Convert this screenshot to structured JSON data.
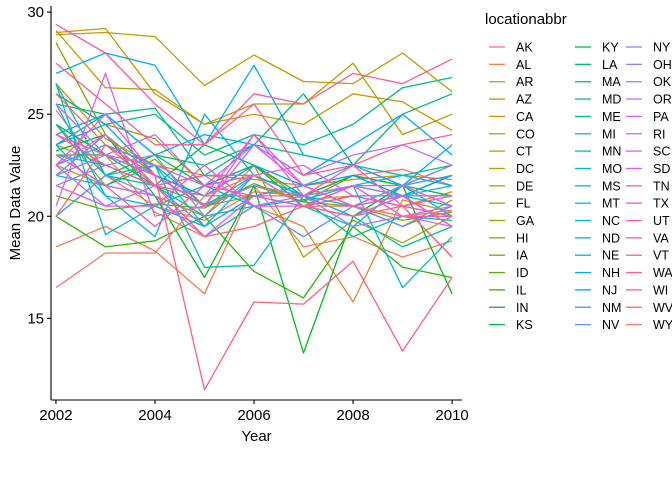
{
  "chart_data": {
    "type": "line",
    "xlabel": "Year",
    "ylabel": "Mean Data Value",
    "xlim": [
      2001.9,
      2010.2
    ],
    "ylim": [
      11.0,
      30.3
    ],
    "x_ticks": [
      2002,
      2004,
      2006,
      2008,
      2010
    ],
    "y_ticks": [
      15,
      20,
      25,
      30
    ],
    "grid": false,
    "legend": {
      "title": "locationabbr",
      "position": "right",
      "columns": 3
    },
    "x": [
      2002,
      2003,
      2004,
      2005,
      2006,
      2007,
      2008,
      2009,
      2010
    ],
    "series": [
      {
        "name": "AK",
        "color": "#F8766D",
        "values": [
          25.2,
          22.0,
          20.5,
          19.8,
          21.2,
          21.0,
          22.0,
          22.3,
          21.5
        ]
      },
      {
        "name": "AL",
        "color": "#F27D53",
        "values": [
          18.5,
          19.5,
          18.3,
          16.2,
          21.5,
          18.5,
          19.0,
          18.0,
          18.8
        ]
      },
      {
        "name": "AR",
        "color": "#EA8331",
        "values": [
          24.5,
          23.0,
          20.2,
          19.0,
          20.5,
          19.5,
          15.8,
          20.8,
          20.2
        ]
      },
      {
        "name": "AZ",
        "color": "#E18A00",
        "values": [
          26.5,
          23.8,
          22.5,
          22.0,
          21.8,
          21.5,
          21.8,
          22.0,
          21.8
        ]
      },
      {
        "name": "CA",
        "color": "#D89000",
        "values": [
          22.5,
          21.5,
          21.0,
          20.0,
          22.5,
          20.8,
          21.0,
          20.5,
          21.2
        ]
      },
      {
        "name": "CO",
        "color": "#CD9600",
        "values": [
          29.0,
          29.2,
          26.0,
          24.5,
          25.0,
          24.5,
          26.0,
          25.6,
          24.2
        ]
      },
      {
        "name": "CT",
        "color": "#C19C00",
        "values": [
          28.9,
          29.0,
          28.8,
          26.4,
          27.9,
          26.6,
          26.5,
          28.0,
          26.1
        ]
      },
      {
        "name": "DC",
        "color": "#B4A100",
        "values": [
          29.1,
          26.3,
          26.2,
          24.5,
          25.5,
          25.5,
          27.5,
          24.0,
          25.0
        ]
      },
      {
        "name": "DE",
        "color": "#A7A500",
        "values": [
          26.0,
          24.5,
          23.8,
          21.5,
          22.5,
          18.0,
          19.8,
          18.7,
          20.0
        ]
      },
      {
        "name": "FL",
        "color": "#99A800",
        "values": [
          23.5,
          22.5,
          21.5,
          20.6,
          21.5,
          20.7,
          20.5,
          19.8,
          20.2
        ]
      },
      {
        "name": "GA",
        "color": "#89AC00",
        "values": [
          24.5,
          21.5,
          22.8,
          20.5,
          21.0,
          21.5,
          20.5,
          19.5,
          20.8
        ]
      },
      {
        "name": "HI",
        "color": "#77AF00",
        "values": [
          28.5,
          24.0,
          22.0,
          21.0,
          21.0,
          20.5,
          21.0,
          20.5,
          20.0
        ]
      },
      {
        "name": "IA",
        "color": "#64B200",
        "values": [
          21.0,
          20.3,
          20.6,
          20.4,
          21.6,
          20.7,
          22.0,
          21.5,
          22.5
        ]
      },
      {
        "name": "ID",
        "color": "#4BB400",
        "values": [
          23.0,
          23.0,
          22.0,
          20.5,
          21.5,
          21.0,
          21.5,
          21.0,
          22.0
        ]
      },
      {
        "name": "IL",
        "color": "#2BB600",
        "values": [
          20.0,
          18.5,
          18.8,
          20.0,
          17.3,
          16.0,
          19.5,
          17.5,
          17.0
        ]
      },
      {
        "name": "IN",
        "color": "#00B81F",
        "values": [
          23.2,
          24.0,
          21.0,
          17.0,
          21.5,
          13.3,
          20.0,
          21.5,
          16.2
        ]
      },
      {
        "name": "KS",
        "color": "#00BA42",
        "values": [
          24.5,
          23.0,
          21.5,
          23.5,
          22.5,
          20.5,
          21.5,
          21.0,
          19.5
        ]
      },
      {
        "name": "KY",
        "color": "#00BB5A",
        "values": [
          20.0,
          22.0,
          23.0,
          21.5,
          22.5,
          21.0,
          22.0,
          21.5,
          21.0
        ]
      },
      {
        "name": "LA",
        "color": "#00BC6E",
        "values": [
          25.5,
          25.0,
          23.0,
          22.5,
          23.5,
          26.0,
          22.5,
          25.0,
          26.0
        ]
      },
      {
        "name": "MA",
        "color": "#00BD80",
        "values": [
          26.0,
          24.5,
          25.0,
          23.0,
          24.0,
          23.5,
          24.5,
          26.3,
          26.8
        ]
      },
      {
        "name": "MD",
        "color": "#00BE90",
        "values": [
          23.5,
          25.0,
          25.3,
          22.0,
          23.5,
          23.0,
          22.5,
          22.0,
          22.5
        ]
      },
      {
        "name": "ME",
        "color": "#00BF9F",
        "values": [
          26.5,
          22.0,
          21.5,
          20.0,
          20.5,
          20.8,
          19.0,
          20.0,
          19.8
        ]
      },
      {
        "name": "MI",
        "color": "#00BFAD",
        "values": [
          22.0,
          21.5,
          22.5,
          17.5,
          17.6,
          21.0,
          20.0,
          18.5,
          19.5
        ]
      },
      {
        "name": "MN",
        "color": "#00BFBA",
        "values": [
          26.5,
          19.1,
          20.5,
          21.5,
          20.5,
          20.8,
          21.5,
          16.5,
          19.0
        ]
      },
      {
        "name": "MO",
        "color": "#00BEC7",
        "values": [
          24.5,
          22.0,
          22.5,
          19.5,
          21.0,
          20.5,
          19.5,
          21.5,
          20.0
        ]
      },
      {
        "name": "MS",
        "color": "#00BCD2",
        "values": [
          23.0,
          22.5,
          21.5,
          22.0,
          22.0,
          20.5,
          21.0,
          21.0,
          20.5
        ]
      },
      {
        "name": "MT",
        "color": "#00BADD",
        "values": [
          25.5,
          21.0,
          20.5,
          19.5,
          22.0,
          21.0,
          20.0,
          21.0,
          21.5
        ]
      },
      {
        "name": "NC",
        "color": "#00B6E7",
        "values": [
          22.5,
          23.5,
          22.5,
          20.5,
          22.0,
          21.0,
          20.5,
          21.0,
          21.0
        ]
      },
      {
        "name": "ND",
        "color": "#00B2F0",
        "values": [
          23.5,
          21.0,
          19.0,
          25.0,
          22.0,
          21.0,
          21.5,
          22.0,
          21.5
        ]
      },
      {
        "name": "NE",
        "color": "#00ADF8",
        "values": [
          27.0,
          28.0,
          27.4,
          23.5,
          27.4,
          23.0,
          22.5,
          21.5,
          23.5
        ]
      },
      {
        "name": "NH",
        "color": "#00A7FF",
        "values": [
          24.0,
          25.0,
          23.0,
          24.0,
          23.5,
          22.0,
          23.5,
          25.0,
          23.0
        ]
      },
      {
        "name": "NJ",
        "color": "#00A0FF",
        "values": [
          23.5,
          24.5,
          22.0,
          21.0,
          22.5,
          21.5,
          22.0,
          21.0,
          22.0
        ]
      },
      {
        "name": "NM",
        "color": "#3D98FF",
        "values": [
          22.0,
          24.0,
          21.5,
          19.5,
          21.0,
          21.5,
          22.5,
          21.5,
          22.0
        ]
      },
      {
        "name": "NV",
        "color": "#648FFF",
        "values": [
          20.0,
          22.0,
          21.0,
          19.0,
          20.5,
          19.0,
          20.5,
          19.5,
          20.5
        ]
      },
      {
        "name": "NY",
        "color": "#8186FF",
        "values": [
          21.5,
          22.5,
          23.0,
          20.0,
          22.0,
          20.5,
          20.5,
          21.5,
          22.5
        ]
      },
      {
        "name": "OH",
        "color": "#977DFF",
        "values": [
          22.0,
          23.0,
          22.0,
          20.5,
          21.5,
          21.0,
          21.5,
          21.0,
          21.0
        ]
      },
      {
        "name": "OK",
        "color": "#AA75FF",
        "values": [
          22.5,
          20.5,
          21.5,
          22.0,
          20.5,
          21.0,
          19.5,
          20.0,
          20.5
        ]
      },
      {
        "name": "OR",
        "color": "#BB6EFF",
        "values": [
          25.5,
          23.0,
          24.0,
          21.5,
          23.5,
          22.0,
          23.0,
          23.5,
          22.5
        ]
      },
      {
        "name": "PA",
        "color": "#C968FA",
        "values": [
          23.0,
          21.5,
          21.0,
          19.0,
          21.0,
          20.5,
          20.0,
          21.0,
          19.5
        ]
      },
      {
        "name": "RI",
        "color": "#D563F2",
        "values": [
          20.5,
          27.0,
          20.0,
          20.5,
          23.5,
          21.5,
          20.5,
          20.0,
          19.5
        ]
      },
      {
        "name": "SC",
        "color": "#DF5FEA",
        "values": [
          22.5,
          24.0,
          21.5,
          21.0,
          24.0,
          21.0,
          21.5,
          21.5,
          20.5
        ]
      },
      {
        "name": "SD",
        "color": "#E85BDF",
        "values": [
          24.0,
          23.0,
          22.5,
          21.5,
          22.0,
          22.5,
          21.0,
          20.5,
          20.0
        ]
      },
      {
        "name": "TN",
        "color": "#EF58D4",
        "values": [
          21.5,
          20.5,
          20.5,
          22.5,
          20.5,
          20.5,
          21.5,
          20.0,
          20.0
        ]
      },
      {
        "name": "TX",
        "color": "#F556C7",
        "values": [
          22.5,
          25.0,
          22.0,
          20.5,
          24.0,
          21.5,
          20.5,
          21.0,
          19.5
        ]
      },
      {
        "name": "UT",
        "color": "#FA55BA",
        "values": [
          23.0,
          21.5,
          19.5,
          21.5,
          21.0,
          21.0,
          22.5,
          20.5,
          18.0
        ]
      },
      {
        "name": "VA",
        "color": "#FD56AC",
        "values": [
          24.0,
          22.5,
          21.5,
          22.0,
          22.0,
          20.5,
          21.0,
          20.5,
          21.0
        ]
      },
      {
        "name": "VT",
        "color": "#FF589D",
        "values": [
          29.4,
          28.0,
          25.5,
          23.5,
          26.0,
          25.5,
          27.0,
          26.5,
          27.7
        ]
      },
      {
        "name": "WA",
        "color": "#FF5B8D",
        "values": [
          27.5,
          25.5,
          23.5,
          23.5,
          25.5,
          22.0,
          22.5,
          23.5,
          24.0
        ]
      },
      {
        "name": "WI",
        "color": "#FF5F7E",
        "values": [
          26.0,
          23.5,
          22.0,
          11.5,
          15.8,
          15.7,
          17.8,
          13.4,
          17.0
        ]
      },
      {
        "name": "WV",
        "color": "#FD6370",
        "values": [
          20.0,
          23.5,
          21.5,
          19.0,
          19.5,
          20.5,
          20.0,
          20.5,
          18.0
        ]
      },
      {
        "name": "WY",
        "color": "#F8766D",
        "values": [
          16.5,
          18.2,
          18.2,
          21.0,
          22.0,
          20.5,
          20.5,
          20.0,
          20.3
        ]
      }
    ]
  }
}
